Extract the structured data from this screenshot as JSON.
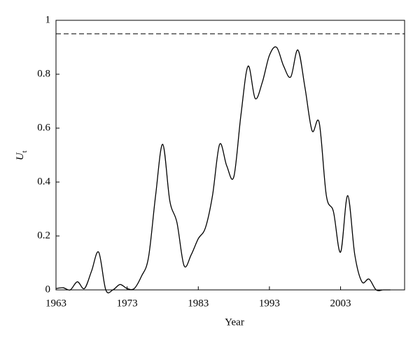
{
  "chart_data": {
    "type": "line",
    "x_label": "Year",
    "y_label": "U",
    "y_label_subscript": "t",
    "x": [
      1963,
      1964,
      1965,
      1966,
      1967,
      1968,
      1969,
      1970,
      1971,
      1972,
      1973,
      1974,
      1975,
      1976,
      1977,
      1978,
      1979,
      1980,
      1981,
      1982,
      1983,
      1984,
      1985,
      1986,
      1987,
      1988,
      1989,
      1990,
      1991,
      1992,
      1993,
      1994,
      1995,
      1996,
      1997,
      1998,
      1999,
      2000,
      2001,
      2002,
      2003,
      2004,
      2005,
      2006,
      2007,
      2008,
      2009,
      2010
    ],
    "series": [
      {
        "color": "#000000",
        "values": [
          0.005,
          0.008,
          0.0,
          0.03,
          0.005,
          0.07,
          0.14,
          0.0,
          0.0,
          0.02,
          0.005,
          0.005,
          0.05,
          0.12,
          0.35,
          0.54,
          0.33,
          0.25,
          0.09,
          0.13,
          0.19,
          0.23,
          0.35,
          0.54,
          0.46,
          0.42,
          0.65,
          0.83,
          0.71,
          0.77,
          0.87,
          0.9,
          0.83,
          0.79,
          0.89,
          0.75,
          0.59,
          0.62,
          0.35,
          0.29,
          0.14,
          0.35,
          0.13,
          0.03,
          0.04,
          0.0,
          0.0,
          0.0
        ]
      }
    ],
    "reference_line": 0.95,
    "xlim": [
      1963,
      2012
    ],
    "xticks": [
      1963,
      1973,
      1983,
      1993,
      2003
    ],
    "ylim": [
      0,
      1
    ],
    "yticks": [
      0,
      0.2,
      0.4,
      0.6,
      0.8,
      1
    ]
  }
}
